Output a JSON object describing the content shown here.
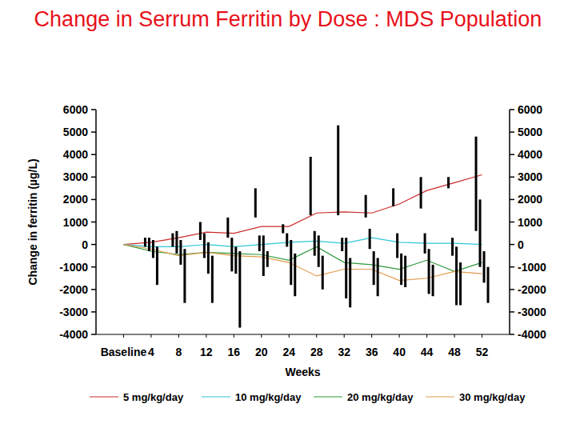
{
  "chart_data": {
    "type": "line",
    "title": "Change in Serrum Ferritin by Dose : MDS Population",
    "x_label": "Weeks",
    "y_label": "Change in ferritin (µg/L)",
    "x": [
      0,
      4,
      8,
      12,
      16,
      20,
      24,
      28,
      32,
      36,
      40,
      44,
      48,
      52
    ],
    "xlim": [
      -4,
      56
    ],
    "xticks": [
      {
        "value": 0,
        "label": "Baseline"
      },
      4,
      8,
      12,
      16,
      20,
      24,
      28,
      32,
      36,
      40,
      44,
      48,
      52
    ],
    "ylim": [
      -4000,
      6000
    ],
    "yticks": [
      -4000,
      -3000,
      -2000,
      -1000,
      0,
      1000,
      2000,
      3000,
      4000,
      5000,
      6000
    ],
    "grid": false,
    "legend": "bottom",
    "series": [
      {
        "name": "5 mg/kg/day",
        "color": "#cc2a2a",
        "values": [
          0,
          100,
          300,
          550,
          500,
          800,
          800,
          1400,
          1450,
          1400,
          1800,
          2400,
          2750,
          3100
        ],
        "low": [
          null,
          -100,
          -100,
          200,
          300,
          1200,
          500,
          1300,
          1300,
          1200,
          1700,
          1600,
          2500,
          600
        ],
        "high": [
          null,
          300,
          500,
          1000,
          1200,
          2500,
          900,
          3900,
          5300,
          2200,
          2500,
          3000,
          3000,
          4800
        ]
      },
      {
        "name": "10 mg/kg/day",
        "color": "#2ec6d6",
        "values": [
          0,
          -100,
          -100,
          0,
          -100,
          0,
          100,
          150,
          50,
          300,
          100,
          50,
          50,
          0
        ],
        "low": [
          null,
          -300,
          -400,
          -600,
          -1200,
          -300,
          -100,
          -500,
          -300,
          -200,
          -600,
          -400,
          -500,
          -1000
        ],
        "high": [
          null,
          300,
          600,
          500,
          300,
          400,
          500,
          600,
          300,
          700,
          500,
          500,
          300,
          2000
        ]
      },
      {
        "name": "20 mg/kg/day",
        "color": "#2f9a3c",
        "values": [
          0,
          -300,
          -450,
          -350,
          -400,
          -450,
          -700,
          -100,
          -800,
          -900,
          -1100,
          -700,
          -1200,
          -800
        ],
        "low": [
          null,
          -600,
          -900,
          -1300,
          -1300,
          -1400,
          -1800,
          -1000,
          -2400,
          -1800,
          -1800,
          -2200,
          -2700,
          -1700
        ],
        "high": [
          null,
          200,
          200,
          100,
          -100,
          400,
          200,
          400,
          300,
          -300,
          -400,
          -200,
          -100,
          -300
        ]
      },
      {
        "name": "30 mg/kg/day",
        "color": "#e39a4c",
        "values": [
          0,
          -200,
          -500,
          -350,
          -500,
          -550,
          -800,
          -1400,
          -1100,
          -1100,
          -1600,
          -1500,
          -1200,
          -1300
        ],
        "low": [
          null,
          -1800,
          -2600,
          -2600,
          -3700,
          -1000,
          -2300,
          -2000,
          -2800,
          -2300,
          -1900,
          -2300,
          -2700,
          -2600
        ],
        "high": [
          null,
          -100,
          -200,
          -500,
          -300,
          -300,
          -400,
          -500,
          -600,
          -600,
          -500,
          -900,
          -800,
          -1000
        ]
      }
    ]
  }
}
